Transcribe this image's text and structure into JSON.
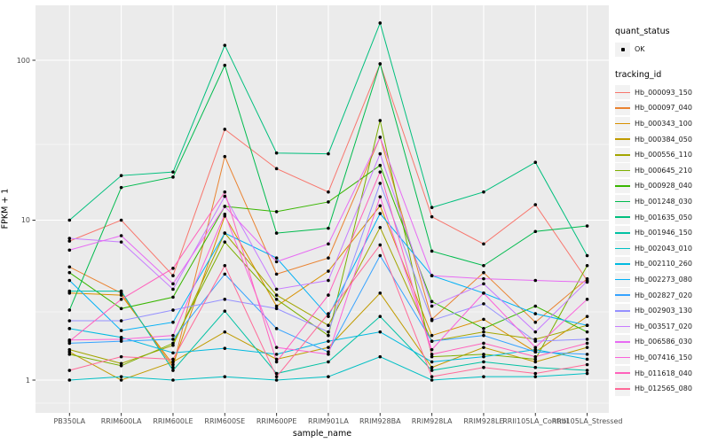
{
  "figure": {
    "kind": "ggplot-style line plot of gene expression across rubber clone samples",
    "background": "#ffffff",
    "panel_background": "#ebebeb",
    "grid_color": "#ffffff",
    "tick_text_color": "#4d4d4d",
    "point_color": "#000000",
    "point_shape": "small filled dot"
  },
  "legend": {
    "quant_status_title": "quant_status",
    "quant_status_items": [
      {
        "label": "OK"
      }
    ],
    "tracking_title": "tracking_id"
  },
  "chart_data": {
    "type": "line",
    "title": "",
    "xlabel": "sample_name",
    "ylabel": "FPKM + 1",
    "y_scale": "log10",
    "ylim": [
      0.63,
      210
    ],
    "y_ticks": [
      {
        "value": 1,
        "label": "1"
      },
      {
        "value": 10,
        "label": "10"
      },
      {
        "value": 100,
        "label": "100"
      }
    ],
    "grid": "major and minor, white on grey panel",
    "legend_position": "right",
    "categories": [
      "PB350LA",
      "RRIM600LA",
      "RRIM600LE",
      "RRIM600SE",
      "RRIM600PE",
      "RRIM901LA",
      "RRIM928BA",
      "RRIM928LA",
      "RRIM928LE",
      "RRII105LA_Control",
      "RRII105LA_Stressed"
    ],
    "series": [
      {
        "name": "Hb_000093_150",
        "color": "#F8766D",
        "values": [
          7.4,
          10,
          4.5,
          37,
          21,
          15,
          95,
          10.5,
          7.1,
          12.5,
          4.2
        ]
      },
      {
        "name": "Hb_000097_040",
        "color": "#EA8331",
        "values": [
          5.1,
          3.5,
          1.2,
          25,
          4.6,
          5.8,
          33,
          2.4,
          4.7,
          2.3,
          4.3
        ]
      },
      {
        "name": "Hb_000343_100",
        "color": "#D89000",
        "values": [
          3.5,
          3.4,
          1.25,
          10.6,
          2.9,
          4.8,
          12.3,
          1.9,
          2.4,
          1.5,
          2.5
        ]
      },
      {
        "name": "Hb_000384_050",
        "color": "#C09B00",
        "values": [
          1.5,
          1.0,
          1.3,
          2.0,
          1.35,
          1.6,
          3.5,
          1.2,
          1.6,
          1.3,
          1.6
        ]
      },
      {
        "name": "Hb_000556_110",
        "color": "#A3A500",
        "values": [
          1.55,
          1.27,
          1.65,
          8.3,
          3.4,
          2.2,
          9.0,
          1.75,
          2.0,
          1.8,
          2.2
        ]
      },
      {
        "name": "Hb_000645_210",
        "color": "#7CAE00",
        "values": [
          1.45,
          1.23,
          1.7,
          7.3,
          3.2,
          1.9,
          42,
          1.4,
          1.45,
          1.35,
          5.2
        ]
      },
      {
        "name": "Hb_000928_040",
        "color": "#39B600",
        "values": [
          4.7,
          2.8,
          3.3,
          12.2,
          11.3,
          13,
          22,
          3.1,
          2.1,
          2.9,
          2.0
        ]
      },
      {
        "name": "Hb_001248_030",
        "color": "#00BB4E",
        "values": [
          2.74,
          16,
          18.6,
          93,
          8.3,
          8.9,
          95,
          6.4,
          5.2,
          8.5,
          9.2
        ]
      },
      {
        "name": "Hb_001635_050",
        "color": "#00BF7D",
        "values": [
          10,
          19,
          20,
          124,
          26.3,
          26,
          171,
          12,
          15,
          23,
          6.0
        ]
      },
      {
        "name": "Hb_001946_150",
        "color": "#00C1A3",
        "values": [
          3.6,
          3.6,
          1.15,
          2.7,
          1.1,
          1.3,
          2.5,
          1.15,
          1.3,
          1.2,
          1.15
        ]
      },
      {
        "name": "Hb_002043_010",
        "color": "#00BFC4",
        "values": [
          1.0,
          1.05,
          1.0,
          1.05,
          1.0,
          1.05,
          1.4,
          1.0,
          1.05,
          1.05,
          1.1
        ]
      },
      {
        "name": "Hb_002110_260",
        "color": "#00BAE0",
        "values": [
          2.1,
          1.85,
          1.48,
          1.58,
          1.45,
          1.75,
          2.0,
          1.3,
          1.4,
          1.55,
          1.35
        ]
      },
      {
        "name": "Hb_002273_080",
        "color": "#00B0F6",
        "values": [
          4.2,
          2.04,
          2.3,
          8.3,
          5.8,
          2.5,
          11,
          4.5,
          3.5,
          2.6,
          2.2
        ]
      },
      {
        "name": "Hb_002827_020",
        "color": "#35A2FF",
        "values": [
          1.7,
          1.75,
          1.8,
          4.6,
          2.1,
          1.5,
          6.0,
          1.75,
          1.9,
          1.5,
          1.45
        ]
      },
      {
        "name": "Hb_002903_130",
        "color": "#9590FF",
        "values": [
          2.35,
          2.35,
          2.74,
          3.2,
          2.8,
          2.0,
          17,
          2.36,
          3.0,
          1.75,
          1.8
        ]
      },
      {
        "name": "Hb_003517_020",
        "color": "#C77CFF",
        "values": [
          7.7,
          7.3,
          3.7,
          14.1,
          3.7,
          4.2,
          26,
          2.9,
          4.0,
          2.0,
          4.15
        ]
      },
      {
        "name": "Hb_006586_030",
        "color": "#E76BF3",
        "values": [
          6.5,
          8.0,
          4.0,
          12.2,
          5.5,
          7.1,
          33,
          4.5,
          4.3,
          4.2,
          4.1
        ]
      },
      {
        "name": "Hb_007416_150",
        "color": "#FA62DB",
        "values": [
          1.78,
          1.8,
          1.9,
          10.9,
          1.6,
          1.45,
          14,
          1.55,
          3.5,
          1.6,
          3.2
        ]
      },
      {
        "name": "Hb_011618_040",
        "color": "#FF62BC",
        "values": [
          1.75,
          3.2,
          5.0,
          15,
          1.3,
          3.4,
          20,
          1.45,
          1.7,
          1.4,
          1.7
        ]
      },
      {
        "name": "Hb_012565_080",
        "color": "#FF6A98",
        "values": [
          1.15,
          1.4,
          1.35,
          5.2,
          1.05,
          2.6,
          7.0,
          1.05,
          1.2,
          1.1,
          1.25
        ]
      }
    ]
  }
}
